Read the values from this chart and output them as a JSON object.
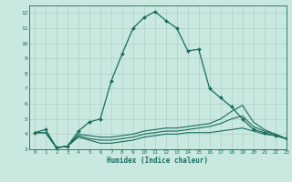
{
  "xlabel": "Humidex (Indice chaleur)",
  "xlim": [
    -0.5,
    23
  ],
  "ylim": [
    3,
    12.5
  ],
  "yticks": [
    3,
    4,
    5,
    6,
    7,
    8,
    9,
    10,
    11,
    12
  ],
  "xticks": [
    0,
    1,
    2,
    3,
    4,
    5,
    6,
    7,
    8,
    9,
    10,
    11,
    12,
    13,
    14,
    15,
    16,
    17,
    18,
    19,
    20,
    21,
    22,
    23
  ],
  "background_color": "#c8e8e0",
  "line_color": "#1a6b5e",
  "lines": [
    {
      "x": [
        0,
        1,
        2,
        3,
        4,
        5,
        6,
        7,
        8,
        9,
        10,
        11,
        12,
        13,
        14,
        15,
        16,
        17,
        18,
        19,
        20,
        21,
        22,
        23
      ],
      "y": [
        4.1,
        4.3,
        3.1,
        3.2,
        4.2,
        4.8,
        5.0,
        7.5,
        9.3,
        11.0,
        11.7,
        12.1,
        11.5,
        11.0,
        9.5,
        9.6,
        7.0,
        6.4,
        5.8,
        5.0,
        4.3,
        4.1,
        3.9,
        3.7
      ],
      "has_marker": true,
      "markersize": 2.0,
      "linewidth": 0.9
    },
    {
      "x": [
        0,
        1,
        2,
        3,
        4,
        5,
        6,
        7,
        8,
        9,
        10,
        11,
        12,
        13,
        14,
        15,
        16,
        17,
        18,
        19,
        20,
        21,
        22,
        23
      ],
      "y": [
        4.1,
        4.1,
        3.1,
        3.2,
        3.8,
        3.6,
        3.4,
        3.4,
        3.5,
        3.6,
        3.8,
        3.9,
        4.0,
        4.0,
        4.1,
        4.1,
        4.1,
        4.2,
        4.3,
        4.4,
        4.2,
        4.0,
        3.9,
        3.7
      ],
      "has_marker": false,
      "markersize": 0,
      "linewidth": 0.8
    },
    {
      "x": [
        0,
        1,
        2,
        3,
        4,
        5,
        6,
        7,
        8,
        9,
        10,
        11,
        12,
        13,
        14,
        15,
        16,
        17,
        18,
        19,
        20,
        21,
        22,
        23
      ],
      "y": [
        4.1,
        4.1,
        3.1,
        3.2,
        3.9,
        3.7,
        3.6,
        3.6,
        3.7,
        3.8,
        4.0,
        4.1,
        4.2,
        4.2,
        4.3,
        4.4,
        4.5,
        4.7,
        5.0,
        5.2,
        4.5,
        4.2,
        4.0,
        3.7
      ],
      "has_marker": false,
      "markersize": 0,
      "linewidth": 0.8
    },
    {
      "x": [
        0,
        1,
        2,
        3,
        4,
        5,
        6,
        7,
        8,
        9,
        10,
        11,
        12,
        13,
        14,
        15,
        16,
        17,
        18,
        19,
        20,
        21,
        22,
        23
      ],
      "y": [
        4.1,
        4.1,
        3.1,
        3.2,
        4.0,
        3.9,
        3.8,
        3.8,
        3.9,
        4.0,
        4.2,
        4.3,
        4.4,
        4.4,
        4.5,
        4.6,
        4.7,
        5.0,
        5.5,
        5.9,
        4.8,
        4.3,
        4.0,
        3.7
      ],
      "has_marker": false,
      "markersize": 0,
      "linewidth": 0.8
    }
  ]
}
